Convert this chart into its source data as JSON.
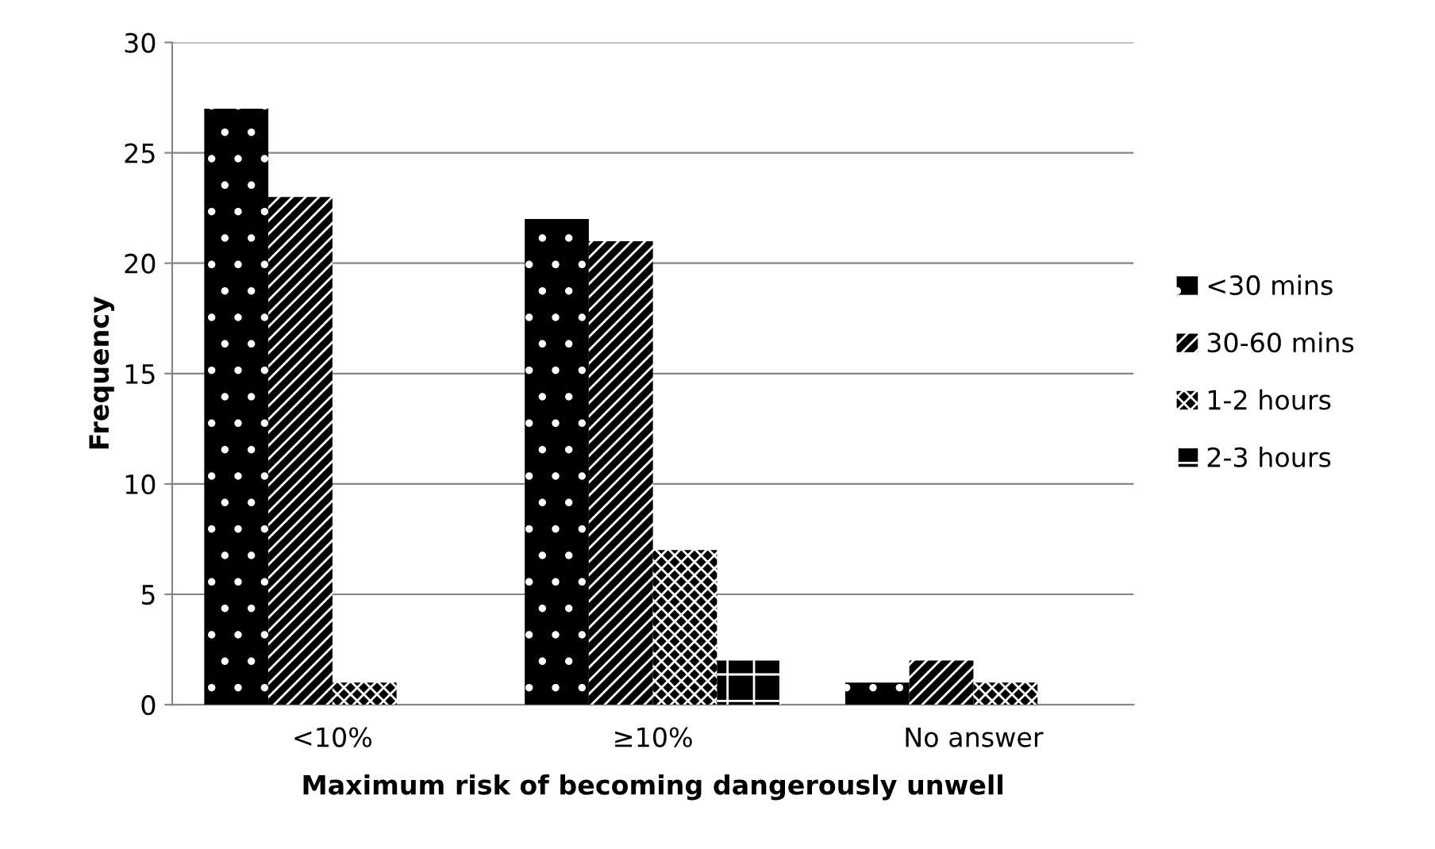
{
  "chart_data": {
    "type": "bar",
    "xlabel": "Maximum risk of becoming dangerously unwell",
    "ylabel": "Frequency",
    "categories": [
      "<10%",
      "≥10%",
      "No answer"
    ],
    "series": [
      {
        "name": "<30 mins",
        "color": "#000000",
        "values": [
          27,
          22,
          1
        ]
      },
      {
        "name": "30-60 mins",
        "color": "#000000",
        "values": [
          23,
          21,
          2
        ]
      },
      {
        "name": "1-2 hours",
        "color": "#000000",
        "values": [
          1,
          7,
          1
        ]
      },
      {
        "name": "2-3 hours",
        "color": "#000000",
        "values": [
          0,
          2,
          0
        ]
      }
    ],
    "ylim": [
      0,
      30
    ],
    "yticks": [
      0,
      5,
      10,
      15,
      20,
      25,
      30
    ],
    "grid": "y",
    "legend": "right"
  }
}
